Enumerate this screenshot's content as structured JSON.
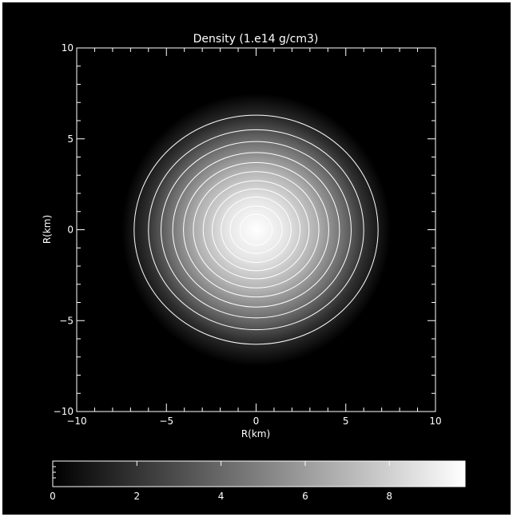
{
  "chart_data": {
    "type": "heatmap",
    "title": "Density (1.e14 g/cm3)",
    "xlabel": "R(km)",
    "ylabel": "R(km)",
    "xlim": [
      -10,
      10
    ],
    "ylim": [
      -10,
      10
    ],
    "x_ticks": [
      -10,
      -5,
      0,
      5,
      10
    ],
    "y_ticks": [
      -10,
      -5,
      0,
      5,
      10
    ],
    "x_tick_labels": [
      "−10",
      "−5",
      "0",
      "5",
      "10"
    ],
    "y_tick_labels": [
      "−10",
      "−5",
      "0",
      "5",
      "10"
    ],
    "density_profile": {
      "center": [
        0,
        0
      ],
      "peak_value": 9.8,
      "edge_radius_km": 7.5
    },
    "contours": {
      "center": [
        0,
        0
      ],
      "x_radii_km": [
        6.8,
        6.0,
        5.3,
        4.65,
        4.05,
        3.5,
        2.95,
        2.45,
        1.95,
        1.45,
        0.9
      ],
      "y_radii_km": [
        6.3,
        5.5,
        4.85,
        4.25,
        3.7,
        3.2,
        2.7,
        2.25,
        1.8,
        1.3,
        0.85
      ],
      "color": "#ffffff"
    },
    "colorbar": {
      "min": 0,
      "max": 9.8,
      "ticks": [
        0,
        2,
        4,
        6,
        8
      ],
      "tick_labels": [
        "0",
        "2",
        "4",
        "6",
        "8"
      ],
      "color_low": "#000000",
      "color_high": "#ffffff"
    },
    "grid": false
  }
}
